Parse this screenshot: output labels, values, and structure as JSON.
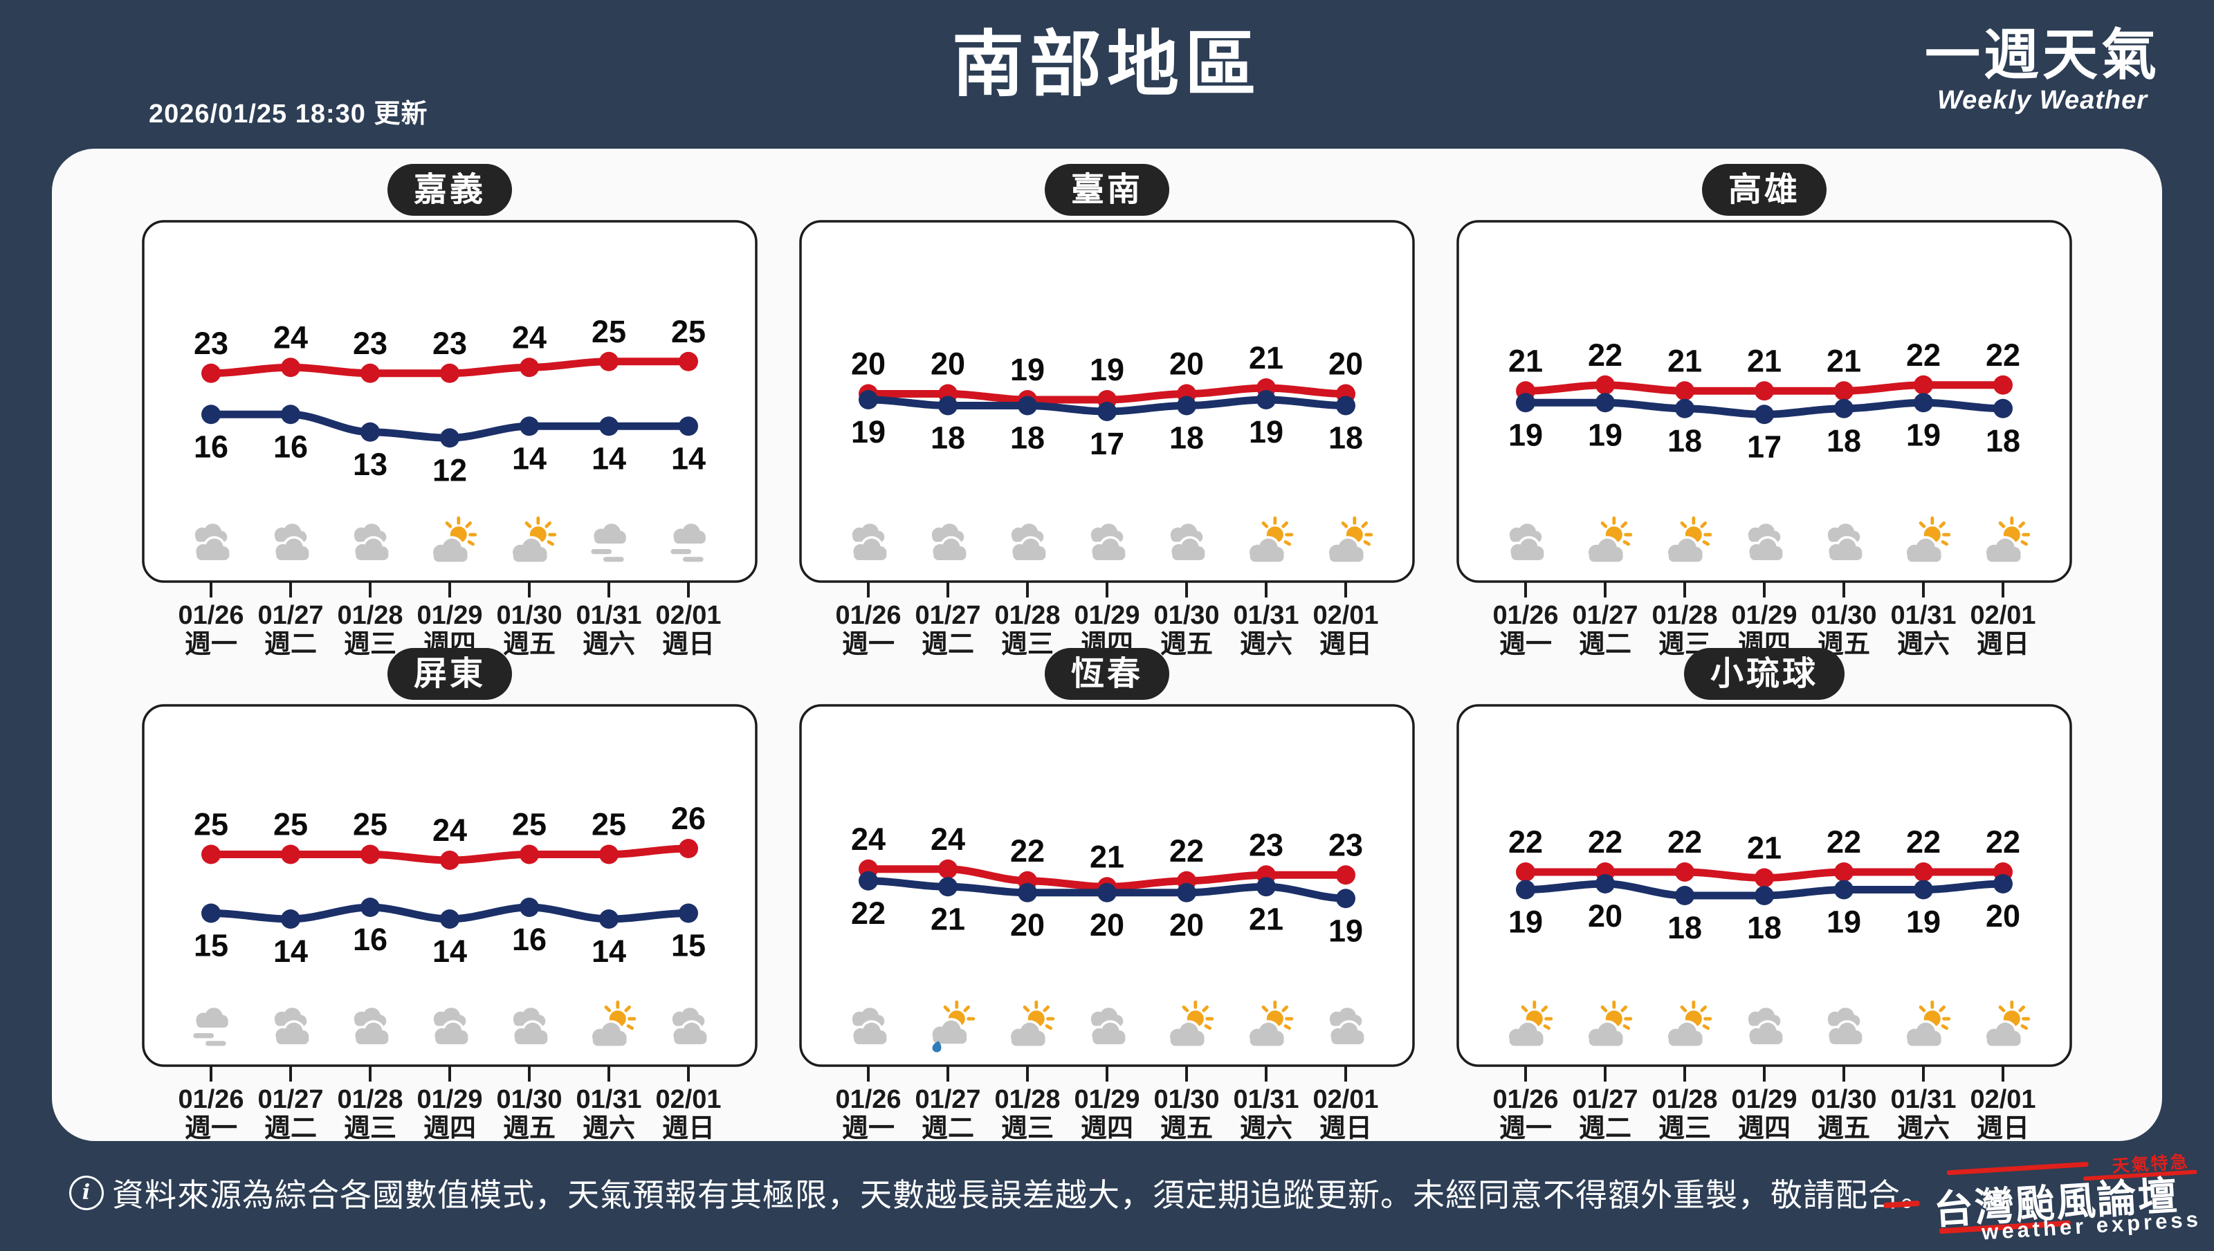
{
  "header": {
    "updated": "2026/01/25 18:30 更新",
    "title": "南部地區",
    "brand_cn": "一週天氣",
    "brand_en": "Weekly Weather"
  },
  "categories": [
    {
      "date": "01/26",
      "weekday": "週一"
    },
    {
      "date": "01/27",
      "weekday": "週二"
    },
    {
      "date": "01/28",
      "weekday": "週三"
    },
    {
      "date": "01/29",
      "weekday": "週四"
    },
    {
      "date": "01/30",
      "weekday": "週五"
    },
    {
      "date": "01/31",
      "weekday": "週六"
    },
    {
      "date": "02/01",
      "weekday": "週日"
    }
  ],
  "chart_data": [
    {
      "type": "line",
      "title": "嘉義",
      "series": [
        {
          "id": "high",
          "color": "#d21420",
          "values": [
            23,
            24,
            23,
            23,
            24,
            25,
            25
          ]
        },
        {
          "id": "low",
          "color": "#1b3068",
          "values": [
            16,
            16,
            13,
            12,
            14,
            14,
            14
          ]
        }
      ],
      "icons": [
        "cloudy",
        "cloudy",
        "cloudy",
        "partly-sunny",
        "partly-sunny",
        "fog",
        "fog"
      ]
    },
    {
      "type": "line",
      "title": "臺南",
      "series": [
        {
          "id": "high",
          "color": "#d21420",
          "values": [
            20,
            20,
            19,
            19,
            20,
            21,
            20
          ]
        },
        {
          "id": "low",
          "color": "#1b3068",
          "values": [
            19,
            18,
            18,
            17,
            18,
            19,
            18
          ]
        }
      ],
      "icons": [
        "cloudy",
        "cloudy",
        "cloudy",
        "cloudy",
        "cloudy",
        "partly-sunny",
        "partly-sunny"
      ]
    },
    {
      "type": "line",
      "title": "高雄",
      "series": [
        {
          "id": "high",
          "color": "#d21420",
          "values": [
            21,
            22,
            21,
            21,
            21,
            22,
            22
          ]
        },
        {
          "id": "low",
          "color": "#1b3068",
          "values": [
            19,
            19,
            18,
            17,
            18,
            19,
            18
          ]
        }
      ],
      "icons": [
        "cloudy",
        "partly-sunny",
        "partly-sunny",
        "cloudy",
        "cloudy",
        "partly-sunny",
        "partly-sunny"
      ]
    },
    {
      "type": "line",
      "title": "屏東",
      "series": [
        {
          "id": "high",
          "color": "#d21420",
          "values": [
            25,
            25,
            25,
            24,
            25,
            25,
            26
          ]
        },
        {
          "id": "low",
          "color": "#1b3068",
          "values": [
            15,
            14,
            16,
            14,
            16,
            14,
            15
          ]
        }
      ],
      "icons": [
        "fog",
        "cloudy",
        "cloudy",
        "cloudy",
        "cloudy",
        "partly-sunny",
        "cloudy"
      ]
    },
    {
      "type": "line",
      "title": "恆春",
      "series": [
        {
          "id": "high",
          "color": "#d21420",
          "values": [
            24,
            24,
            22,
            21,
            22,
            23,
            23
          ]
        },
        {
          "id": "low",
          "color": "#1b3068",
          "values": [
            22,
            21,
            20,
            20,
            20,
            21,
            19
          ]
        }
      ],
      "icons": [
        "cloudy",
        "sun-rain",
        "partly-sunny",
        "cloudy",
        "partly-sunny",
        "partly-sunny",
        "cloudy"
      ]
    },
    {
      "type": "line",
      "title": "小琉球",
      "series": [
        {
          "id": "high",
          "color": "#d21420",
          "values": [
            22,
            22,
            22,
            21,
            22,
            22,
            22
          ]
        },
        {
          "id": "low",
          "color": "#1b3068",
          "values": [
            19,
            20,
            18,
            18,
            19,
            19,
            20
          ]
        }
      ],
      "icons": [
        "partly-sunny",
        "partly-sunny",
        "partly-sunny",
        "cloudy",
        "cloudy",
        "partly-sunny",
        "partly-sunny"
      ]
    }
  ],
  "footer": {
    "info_glyph": "i",
    "disclaimer": "資料來源為綜合各國數值模式，天氣預報有其極限，天數越長誤差越大，須定期追蹤更新。未經同意不得額外重製，敬請配合。",
    "logo": {
      "tagline": "天氣特急",
      "name": "台灣颱風論壇",
      "subtitle": "weather express"
    }
  },
  "colors": {
    "background": "#2d3e55",
    "panel": "#fafafa",
    "high_line": "#d21420",
    "low_line": "#1b3068",
    "badge": "#242424",
    "sun": "#f2a51a",
    "cloud": "#c5c5c5",
    "rain_drop": "#2e7cb8",
    "accent_red": "#e0201b"
  }
}
